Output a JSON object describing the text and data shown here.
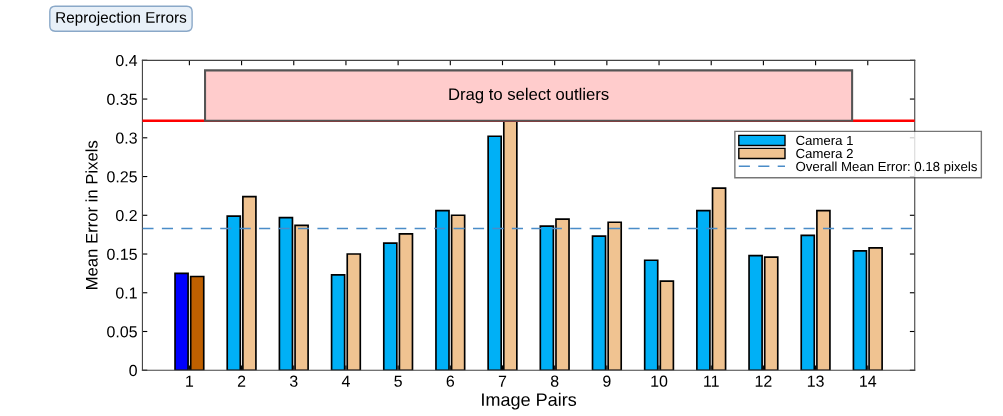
{
  "chart_data": {
    "type": "bar",
    "title": "Reprojection Errors",
    "xlabel": "Image Pairs",
    "ylabel": "Mean Error in Pixels",
    "categories": [
      "1",
      "2",
      "3",
      "4",
      "5",
      "6",
      "7",
      "8",
      "9",
      "10",
      "11",
      "12",
      "13",
      "14"
    ],
    "series": [
      {
        "name": "Camera 1",
        "color": "#00b0f6",
        "colors": [
          "#0000ff",
          "#00b0f6",
          "#00b0f6",
          "#00b0f6",
          "#00b0f6",
          "#00b0f6",
          "#00b0f6",
          "#00b0f6",
          "#00b0f6",
          "#00b0f6",
          "#00b0f6",
          "#00b0f6",
          "#00b0f6",
          "#00b0f6"
        ],
        "values": [
          0.125,
          0.199,
          0.197,
          0.123,
          0.164,
          0.206,
          0.302,
          0.186,
          0.173,
          0.142,
          0.206,
          0.148,
          0.174,
          0.154
        ]
      },
      {
        "name": "Camera 2",
        "color": "#f0c391",
        "colors": [
          "#bf6000",
          "#f0c391",
          "#f0c391",
          "#f0c391",
          "#f0c391",
          "#f0c391",
          "#f0c391",
          "#f0c391",
          "#f0c391",
          "#f0c391",
          "#f0c391",
          "#f0c391",
          "#f0c391",
          "#f0c391"
        ],
        "values": [
          0.121,
          0.224,
          0.187,
          0.15,
          0.176,
          0.2,
          0.322,
          0.195,
          0.191,
          0.115,
          0.235,
          0.146,
          0.206,
          0.158
        ]
      }
    ],
    "ref_lines": [
      {
        "axis": "y",
        "value": 0.183,
        "label": "Overall Mean Error: 0.18 pixels",
        "color": "#4a8cc8",
        "line_style": "dashed"
      },
      {
        "axis": "y",
        "value": 0.322,
        "color": "#ff0000",
        "line_style": "solid"
      }
    ],
    "annotations": [
      "Drag to select outliers"
    ],
    "ylim": [
      0,
      0.4
    ],
    "yticks": [
      0,
      0.05,
      0.1,
      0.15,
      0.2,
      0.25,
      0.3,
      0.35,
      0.4
    ],
    "grid": false,
    "legend": "top right"
  }
}
